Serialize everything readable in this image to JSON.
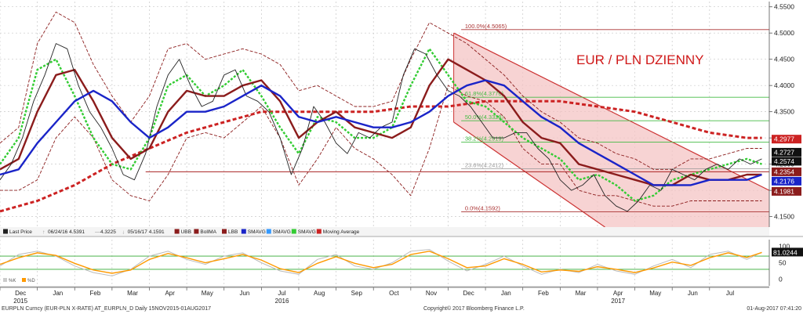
{
  "chart_data": {
    "type": "line",
    "title": "EUR / PLN DZIENNY",
    "price_panel": {
      "ylim": [
        4.13,
        4.56
      ],
      "y_ticks": [
        "4.5500",
        "4.5000",
        "4.4500",
        "4.4000",
        "4.3500",
        "4.3000",
        "4.2500",
        "4.2000",
        "4.1500"
      ],
      "y_tick_values": [
        4.55,
        4.5,
        4.45,
        4.4,
        4.35,
        4.3,
        4.25,
        4.2,
        4.15
      ],
      "grid": true,
      "x_months": [
        "Dec",
        "Jan",
        "Feb",
        "Mar",
        "Apr",
        "May",
        "Jun",
        "Jul",
        "Aug",
        "Sep",
        "Oct",
        "Nov",
        "Dec",
        "Jan",
        "Feb",
        "Mar",
        "Apr",
        "May",
        "Jun",
        "Jul"
      ],
      "x_month_index": [
        0.55,
        1.55,
        2.55,
        3.55,
        4.55,
        5.55,
        6.55,
        7.55,
        8.55,
        9.55,
        10.55,
        11.55,
        12.55,
        13.55,
        14.55,
        15.55,
        16.55,
        17.55,
        18.55,
        19.55
      ],
      "x_years": [
        {
          "label": "2015",
          "at": 0.55
        },
        {
          "label": "2016",
          "at": 7.55
        },
        {
          "label": "2017",
          "at": 16.55
        }
      ],
      "x_range": [
        0,
        20.6
      ],
      "series": [
        {
          "name": "SMAVG",
          "color": "#1a24c8",
          "x": [
            0,
            0.5,
            1,
            1.5,
            2,
            2.5,
            3,
            3.5,
            4,
            4.5,
            5,
            5.5,
            6,
            6.5,
            7,
            7.5,
            8,
            8.5,
            9,
            9.5,
            10,
            10.5,
            11,
            11.5,
            12,
            12.5,
            13,
            13.5,
            14,
            14.5,
            15,
            15.5,
            16,
            16.5,
            17,
            17.5,
            18,
            18.5,
            19,
            19.5,
            20,
            20.4
          ],
          "y": [
            4.23,
            4.24,
            4.29,
            4.33,
            4.37,
            4.39,
            4.37,
            4.33,
            4.3,
            4.32,
            4.35,
            4.35,
            4.36,
            4.38,
            4.4,
            4.38,
            4.34,
            4.33,
            4.34,
            4.33,
            4.32,
            4.32,
            4.33,
            4.35,
            4.38,
            4.4,
            4.41,
            4.4,
            4.37,
            4.34,
            4.32,
            4.29,
            4.27,
            4.25,
            4.23,
            4.21,
            4.21,
            4.21,
            4.22,
            4.22,
            4.22,
            4.23
          ]
        },
        {
          "name": "BollMA",
          "color": "#8b1c1c",
          "x": [
            0,
            0.5,
            1,
            1.5,
            2,
            2.5,
            3,
            3.5,
            4,
            4.5,
            5,
            5.5,
            6,
            6.5,
            7,
            7.5,
            8,
            8.5,
            9,
            9.5,
            10,
            10.5,
            11,
            11.5,
            12,
            12.5,
            13,
            13.5,
            14,
            14.5,
            15,
            15.5,
            16,
            16.5,
            17,
            17.5,
            18,
            18.5,
            19,
            19.5,
            20,
            20.4
          ],
          "y": [
            4.24,
            4.26,
            4.35,
            4.42,
            4.43,
            4.37,
            4.3,
            4.26,
            4.28,
            4.35,
            4.39,
            4.38,
            4.38,
            4.4,
            4.41,
            4.37,
            4.3,
            4.33,
            4.35,
            4.32,
            4.31,
            4.3,
            4.32,
            4.4,
            4.45,
            4.43,
            4.41,
            4.38,
            4.33,
            4.3,
            4.29,
            4.25,
            4.24,
            4.23,
            4.22,
            4.21,
            4.21,
            4.23,
            4.22,
            4.22,
            4.23,
            4.23
          ]
        },
        {
          "name": "Moving Average",
          "color": "#cc2222",
          "dashed": true,
          "thick": true,
          "x": [
            0,
            1,
            2,
            3,
            4,
            5,
            6,
            7,
            8,
            9,
            10,
            11,
            12,
            13,
            14,
            15,
            16,
            17,
            18,
            19,
            20,
            20.4
          ],
          "y": [
            4.16,
            4.18,
            4.21,
            4.25,
            4.28,
            4.31,
            4.33,
            4.35,
            4.35,
            4.35,
            4.35,
            4.36,
            4.36,
            4.37,
            4.37,
            4.37,
            4.36,
            4.35,
            4.33,
            4.31,
            4.3,
            4.3
          ]
        },
        {
          "name": "SMAVG (2)",
          "color": "#33cc33",
          "dashed": true,
          "x": [
            0,
            0.5,
            1,
            1.5,
            2,
            2.5,
            3,
            3.5,
            4,
            4.5,
            5,
            5.5,
            6,
            6.5,
            7,
            7.5,
            8,
            8.5,
            9,
            9.5,
            10,
            10.5,
            11,
            11.5,
            12,
            12.5,
            13,
            13.5,
            14,
            14.5,
            15,
            15.5,
            16,
            16.5,
            17,
            17.5,
            18,
            18.5,
            19,
            19.5,
            20,
            20.4
          ],
          "y": [
            4.25,
            4.3,
            4.43,
            4.45,
            4.38,
            4.3,
            4.25,
            4.24,
            4.3,
            4.4,
            4.42,
            4.38,
            4.4,
            4.43,
            4.38,
            4.32,
            4.27,
            4.34,
            4.33,
            4.3,
            4.3,
            4.32,
            4.4,
            4.47,
            4.42,
            4.37,
            4.36,
            4.33,
            4.3,
            4.28,
            4.26,
            4.22,
            4.23,
            4.21,
            4.18,
            4.19,
            4.22,
            4.23,
            4.24,
            4.25,
            4.26,
            4.25
          ]
        },
        {
          "name": "UBB",
          "color": "#8b1c1c",
          "dashed": true,
          "thin": true,
          "x": [
            0,
            0.5,
            1,
            1.5,
            2,
            2.5,
            3,
            3.5,
            4,
            4.5,
            5,
            5.5,
            6,
            6.5,
            7,
            7.5,
            8,
            8.5,
            9,
            9.5,
            10,
            10.5,
            11,
            11.5,
            12,
            12.5,
            13,
            13.5,
            14,
            14.5,
            15,
            15.5,
            16,
            16.5,
            17,
            17.5,
            18,
            18.5,
            19,
            19.5,
            20,
            20.4
          ],
          "y": [
            4.29,
            4.32,
            4.48,
            4.54,
            4.52,
            4.44,
            4.38,
            4.33,
            4.38,
            4.47,
            4.48,
            4.45,
            4.46,
            4.47,
            4.46,
            4.44,
            4.39,
            4.4,
            4.38,
            4.36,
            4.36,
            4.37,
            4.45,
            4.52,
            4.5,
            4.48,
            4.45,
            4.42,
            4.38,
            4.35,
            4.33,
            4.3,
            4.29,
            4.27,
            4.26,
            4.24,
            4.24,
            4.26,
            4.26,
            4.27,
            4.28,
            4.28
          ]
        },
        {
          "name": "LBB",
          "color": "#8b1c1c",
          "dashed": true,
          "thin": true,
          "x": [
            0,
            0.5,
            1,
            1.5,
            2,
            2.5,
            3,
            3.5,
            4,
            4.5,
            5,
            5.5,
            6,
            6.5,
            7,
            7.5,
            8,
            8.5,
            9,
            9.5,
            10,
            10.5,
            11,
            11.5,
            12,
            12.5,
            13,
            13.5,
            14,
            14.5,
            15,
            15.5,
            16,
            16.5,
            17,
            17.5,
            18,
            18.5,
            19,
            19.5,
            20,
            20.4
          ],
          "y": [
            4.2,
            4.2,
            4.22,
            4.3,
            4.34,
            4.3,
            4.22,
            4.19,
            4.18,
            4.23,
            4.3,
            4.31,
            4.3,
            4.33,
            4.36,
            4.3,
            4.21,
            4.26,
            4.32,
            4.28,
            4.26,
            4.23,
            4.19,
            4.28,
            4.4,
            4.38,
            4.37,
            4.34,
            4.28,
            4.25,
            4.25,
            4.2,
            4.19,
            4.19,
            4.18,
            4.17,
            4.17,
            4.18,
            4.18,
            4.18,
            4.18,
            4.18
          ]
        },
        {
          "name": "Last Price",
          "color": "#222222",
          "thin": true,
          "x": [
            0,
            0.3,
            0.6,
            0.9,
            1.2,
            1.5,
            1.8,
            2.1,
            2.4,
            2.7,
            3.0,
            3.3,
            3.6,
            3.9,
            4.2,
            4.5,
            4.8,
            5.1,
            5.4,
            5.7,
            6.0,
            6.3,
            6.6,
            6.9,
            7.2,
            7.5,
            7.8,
            8.1,
            8.4,
            8.7,
            9.0,
            9.3,
            9.6,
            9.9,
            10.2,
            10.5,
            10.8,
            11.1,
            11.4,
            11.7,
            12.0,
            12.3,
            12.6,
            12.9,
            13.2,
            13.5,
            13.8,
            14.1,
            14.4,
            14.7,
            15.0,
            15.3,
            15.6,
            15.9,
            16.2,
            16.5,
            16.8,
            17.1,
            17.4,
            17.7,
            18.0,
            18.3,
            18.6,
            18.9,
            19.2,
            19.5,
            19.8,
            20.1,
            20.4
          ],
          "y": [
            4.22,
            4.25,
            4.3,
            4.37,
            4.42,
            4.48,
            4.47,
            4.4,
            4.35,
            4.32,
            4.28,
            4.23,
            4.22,
            4.27,
            4.36,
            4.42,
            4.45,
            4.4,
            4.36,
            4.37,
            4.42,
            4.43,
            4.38,
            4.37,
            4.35,
            4.3,
            4.23,
            4.28,
            4.36,
            4.33,
            4.29,
            4.27,
            4.31,
            4.3,
            4.32,
            4.33,
            4.42,
            4.47,
            4.46,
            4.42,
            4.39,
            4.38,
            4.36,
            4.33,
            4.3,
            4.3,
            4.31,
            4.31,
            4.28,
            4.26,
            4.22,
            4.2,
            4.21,
            4.23,
            4.19,
            4.17,
            4.16,
            4.18,
            4.21,
            4.2,
            4.24,
            4.23,
            4.22,
            4.24,
            4.25,
            4.24,
            4.26,
            4.25,
            4.26
          ]
        }
      ],
      "horizontal_levels": [
        {
          "value": 4.5065,
          "label": "100.0%(4.5065)",
          "color": "#aa3333"
        },
        {
          "value": 4.3776,
          "label": "61.8%(4.3776)",
          "color": "#44bb44"
        },
        {
          "value": 4.3328,
          "label": "50.0%(4.3328)",
          "color": "#44bb44"
        },
        {
          "value": 4.2919,
          "label": "38.2%(4.2919)",
          "color": "#44bb44"
        },
        {
          "value": 4.2412,
          "label": "23.6%(4.2412)",
          "color": "#999999"
        },
        {
          "value": 4.1592,
          "label": "0.0%(4.1592)",
          "color": "#aa3333"
        }
      ],
      "support_line": {
        "value": 4.2354,
        "from": 3.9,
        "to": 20.6,
        "color": "#aa2222"
      },
      "channel": {
        "upper": [
          [
            12.15,
            4.5
          ],
          [
            20.6,
            4.2
          ]
        ],
        "lower": [
          [
            12.15,
            4.33
          ],
          [
            16.2,
            4.13
          ]
        ],
        "color": "#cc3333",
        "fill": "#f4c4c4"
      },
      "price_tags": [
        {
          "value": 4.2977,
          "label": "4.2977",
          "bg": "#cc2222",
          "fg": "#ffffff"
        },
        {
          "value": 4.2727,
          "label": "4.2727",
          "bg": "#111111",
          "fg": "#ffffff"
        },
        {
          "value": 4.2574,
          "label": "4.2574",
          "bg": "#111111",
          "fg": "#ffffff"
        },
        {
          "value": 4.2354,
          "label": "4.2354",
          "bg": "#8b1c1c",
          "fg": "#ffffff"
        },
        {
          "value": 4.2176,
          "label": "4.2176",
          "bg": "#1a24c8",
          "fg": "#ffffff"
        },
        {
          "value": 4.1981,
          "label": "4.1981",
          "bg": "#8b1c1c",
          "fg": "#ffffff"
        }
      ]
    },
    "legend": [
      {
        "label": "Last Price",
        "color": "#222222",
        "kind": "box"
      },
      {
        "label": "06/24/16 4.5391",
        "color": "#999999",
        "kind": "up"
      },
      {
        "label": "4.3225",
        "color": "#999999",
        "kind": "dash"
      },
      {
        "label": "05/16/17 4.1591",
        "color": "#999999",
        "kind": "down"
      },
      {
        "label": "UBB",
        "color": "#8b1c1c",
        "kind": "box"
      },
      {
        "label": "BollMA",
        "color": "#8b1c1c",
        "kind": "box"
      },
      {
        "label": "LBB",
        "color": "#8b1c1c",
        "kind": "box"
      },
      {
        "label": "SMAVG",
        "color": "#1a24c8",
        "kind": "box"
      },
      {
        "label": "SMAVG",
        "color": "#3399ff",
        "kind": "box"
      },
      {
        "label": "SMAVG",
        "color": "#33cc33",
        "kind": "box"
      },
      {
        "label": "Moving Average",
        "color": "#cc2222",
        "kind": "box"
      }
    ],
    "indicator_panel": {
      "ylim": [
        -20,
        120
      ],
      "y_ticks": [
        "100",
        "50",
        "0"
      ],
      "y_tick_values": [
        100,
        50,
        0
      ],
      "levels": [
        70,
        30
      ],
      "last_value": "81.0244",
      "legend": [
        {
          "label": "%K",
          "color": "#cccccc"
        },
        {
          "label": "%D",
          "color": "#ff9900"
        }
      ],
      "x": [
        0,
        0.5,
        1,
        1.5,
        2,
        2.5,
        3,
        3.5,
        4,
        4.5,
        5,
        5.5,
        6,
        6.5,
        7,
        7.5,
        8,
        8.5,
        9,
        9.5,
        10,
        10.5,
        11,
        11.5,
        12,
        12.5,
        13,
        13.5,
        14,
        14.5,
        15,
        15.5,
        16,
        16.5,
        17,
        17.5,
        18,
        18.5,
        19,
        19.5,
        20,
        20.4
      ],
      "k": [
        40,
        75,
        85,
        70,
        40,
        20,
        10,
        30,
        70,
        85,
        60,
        45,
        70,
        80,
        50,
        25,
        15,
        60,
        75,
        40,
        30,
        50,
        85,
        90,
        55,
        25,
        45,
        70,
        40,
        15,
        30,
        20,
        45,
        25,
        15,
        40,
        60,
        35,
        75,
        85,
        60,
        82
      ],
      "d": [
        45,
        65,
        80,
        72,
        48,
        28,
        18,
        28,
        60,
        78,
        65,
        50,
        62,
        75,
        58,
        32,
        20,
        48,
        68,
        48,
        35,
        45,
        75,
        85,
        62,
        35,
        40,
        62,
        45,
        22,
        28,
        24,
        38,
        30,
        20,
        34,
        52,
        42,
        65,
        80,
        66,
        81
      ]
    }
  },
  "footer": {
    "left": "EURPLN Curncy (EUR-PLN X-RATE) AT_EURPLN_D  Daily 15NOV2015-01AUG2017",
    "center": "Copyright© 2017 Bloomberg Finance L.P.",
    "right": "01-Aug-2017 07:41:20"
  }
}
